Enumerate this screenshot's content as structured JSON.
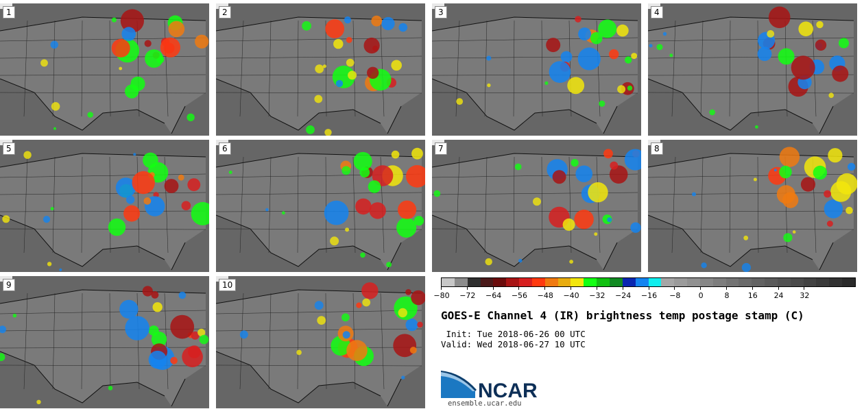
{
  "panels": [
    "1",
    "2",
    "3",
    "4",
    "5",
    "6",
    "7",
    "8",
    "9",
    "10"
  ],
  "colorbar": {
    "colors": [
      "#c7c7c7",
      "#8c8c8c",
      "#2f2f2f",
      "#4a1a1a",
      "#6b0c0c",
      "#a81414",
      "#d72020",
      "#ff3a10",
      "#f07a10",
      "#e8ac10",
      "#f2e60c",
      "#12ff12",
      "#10c010",
      "#118a22",
      "#0a26b0",
      "#1484f0",
      "#10eeee",
      "#a6a6a6",
      "#9b9b9b",
      "#919191",
      "#878787",
      "#7d7d7d",
      "#737373",
      "#6a6a6a",
      "#626262",
      "#5a5a5a",
      "#525252",
      "#4a4a4a",
      "#424242",
      "#3a3a3a",
      "#323232",
      "#2a2a2a"
    ],
    "ticks": [
      "−80",
      "−72",
      "−64",
      "−56",
      "−48",
      "−40",
      "−32",
      "−24",
      "−16",
      "−8",
      "0",
      "8",
      "16",
      "24",
      "32"
    ]
  },
  "title": "GOES-E Channel 4 (IR) brightness temp postage stamp (C)",
  "init_line": " Init: Tue 2018-06-26 00 UTC",
  "valid_line": "Valid: Wed 2018-06-27 10 UTC",
  "logo_text": "NCAR",
  "url": "ensemble.ucar.edu"
}
